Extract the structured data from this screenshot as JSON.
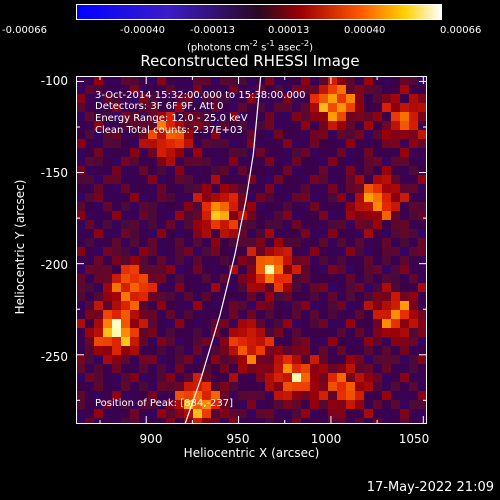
{
  "chart_data": {
    "type": "heatmap",
    "title": "Reconstructed RHESSI Image",
    "xlabel": "Heliocentric X (arcsec)",
    "ylabel": "Heliocentric Y (arcsec)",
    "xlim": [
      862,
      1052
    ],
    "ylim": [
      -288,
      -97
    ],
    "x_ticks": [
      "900",
      "950",
      "1000",
      "1050"
    ],
    "y_ticks": [
      "-100",
      "-150",
      "-200",
      "-250"
    ],
    "colorbar": {
      "ticks": [
        "-0.00066",
        "-0.00040",
        "-0.00013",
        "0.00013",
        "0.00040",
        "0.00066"
      ],
      "unit_prefix": "(photons cm",
      "unit_exp1": "-2",
      "unit_mid": " s",
      "unit_exp2": "-1",
      "unit_mid2": " asec",
      "unit_exp3": "-2",
      "unit_suffix": ")"
    },
    "annotations": {
      "time_range": "3-Oct-2014 15:32:00.000 to 15:38:00.000",
      "detectors": "Detectors: 3F 6F 9F, Att 0",
      "energy": "Energy Range: 12.0 - 25.0 keV",
      "clean": "Clean     Total counts: 2.37E+03",
      "peak": "Position of Peak: [884,-237]"
    },
    "peaks": [
      {
        "x": 884,
        "y": -237,
        "v": 1.0
      },
      {
        "x": 1002,
        "y": -112,
        "v": 0.9
      },
      {
        "x": 968,
        "y": -203,
        "v": 0.85
      },
      {
        "x": 980,
        "y": -262,
        "v": 0.8
      },
      {
        "x": 892,
        "y": -212,
        "v": 0.75
      },
      {
        "x": 940,
        "y": -172,
        "v": 0.8
      },
      {
        "x": 1025,
        "y": -165,
        "v": 0.75
      },
      {
        "x": 1035,
        "y": -228,
        "v": 0.7
      },
      {
        "x": 928,
        "y": -276,
        "v": 0.85
      },
      {
        "x": 912,
        "y": -130,
        "v": 0.7
      },
      {
        "x": 955,
        "y": -245,
        "v": 0.65
      },
      {
        "x": 1008,
        "y": -268,
        "v": 0.65
      },
      {
        "x": 1040,
        "y": -120,
        "v": 0.6
      }
    ],
    "limb": [
      [
        921,
        -288
      ],
      [
        930,
        -262
      ],
      [
        940,
        -228
      ],
      [
        948,
        -195
      ],
      [
        954,
        -165
      ],
      [
        958,
        -140
      ],
      [
        962,
        -97
      ]
    ]
  },
  "timestamp": "17-May-2022 21:09"
}
